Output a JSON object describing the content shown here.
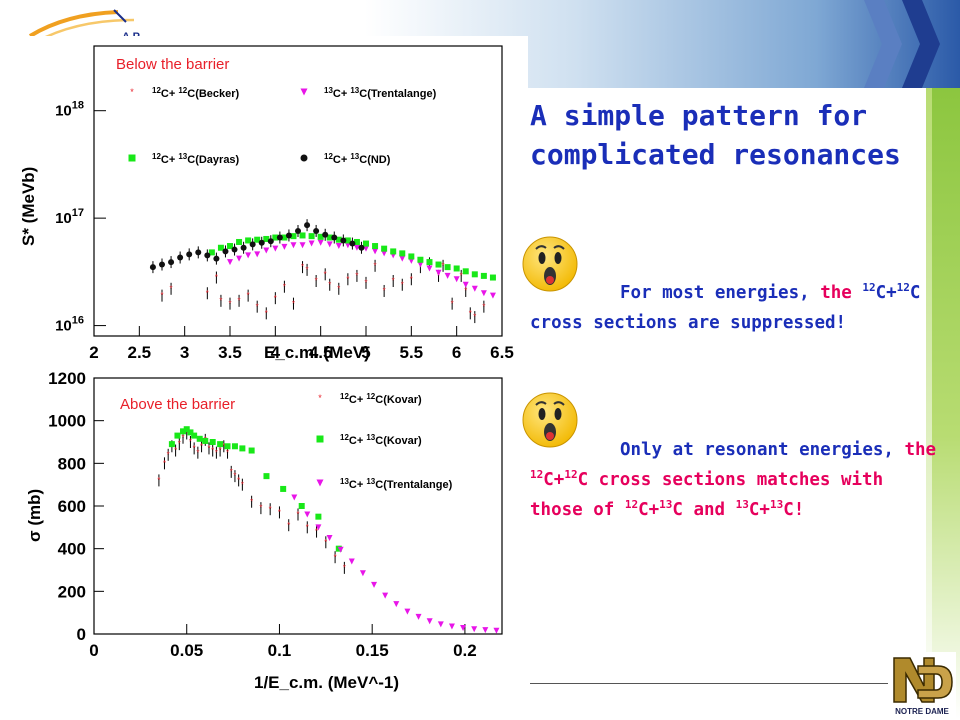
{
  "slide": {
    "title_line1": "A simple pattern for",
    "title_line2": "complicated resonances",
    "bullet1": {
      "icon": "surprised-face-icon",
      "lead": "For most energies, ",
      "the": "the",
      "part1_sup": "12",
      "part2": "C+",
      "part3_sup": "12",
      "part4": "C cross sections are suppressed!"
    },
    "bullet2": {
      "icon": "surprised-face-icon",
      "lead": "Only at resonant energies, ",
      "the": "the",
      "s1": "12",
      "t1": "C+",
      "s2": "12",
      "t2": "C cross sections matches with those of ",
      "s3": "12",
      "t3": "C+",
      "s4": "13",
      "t4": "C and ",
      "s5": "13",
      "t5": "C+",
      "s6": "13",
      "t6": "C!"
    },
    "logo_text": "A P",
    "nd_logo_caption": "NOTRE DAME",
    "colors": {
      "title": "#1a2eb8",
      "highlight": "#e6005c",
      "accent_green": "#8cc63f",
      "accent_blue": "#2b5aa8"
    }
  },
  "chart_data": [
    {
      "type": "scatter",
      "annotation": "Below the barrier",
      "xlabel": "E_c.m. (MeV)",
      "ylabel": "S* (MeVb)",
      "xlim": [
        2,
        6.5
      ],
      "ylim": [
        8000000000000000.0,
        4e+18
      ],
      "yscale": "log",
      "xticks": [
        "2",
        "2.5",
        "3",
        "3.5",
        "4",
        "4.5",
        "5",
        "5.5",
        "6",
        "6.5"
      ],
      "yticks": [
        "10^16",
        "10^17",
        "10^18"
      ],
      "series": [
        {
          "name": "12C+12C(Becker)",
          "marker": "star",
          "color": "#e8202a",
          "x": [
            2.75,
            2.85,
            3.25,
            3.35,
            3.4,
            3.5,
            3.6,
            3.7,
            3.8,
            3.9,
            4.0,
            4.1,
            4.2,
            4.3,
            4.35,
            4.45,
            4.55,
            4.6,
            4.7,
            4.8,
            4.9,
            5.0,
            5.1,
            5.2,
            5.3,
            5.4,
            5.5,
            5.6,
            5.7,
            5.8,
            5.85,
            5.95,
            6.05,
            6.1,
            6.15,
            6.2,
            6.3
          ],
          "y": [
            1.9e+16,
            2.2e+16,
            2e+16,
            2.8e+16,
            1.7e+16,
            1.6e+16,
            1.7e+16,
            1.9e+16,
            1.5e+16,
            1.3e+16,
            1.8e+16,
            2.3e+16,
            1.6e+16,
            3.5e+16,
            3.3e+16,
            2.6e+16,
            3e+16,
            2.4e+16,
            2.2e+16,
            2.7e+16,
            2.9e+16,
            2.5e+16,
            3.6e+16,
            2.1e+16,
            2.6e+16,
            2.4e+16,
            2.7e+16,
            3.5e+16,
            3.8e+16,
            2.9e+16,
            3.6e+16,
            1.6e+16,
            2.9e+16,
            2.1e+16,
            1.3e+16,
            1.2e+16,
            1.5e+16
          ]
        },
        {
          "name": "13C+13C(Trentalange)",
          "marker": "triangle-down",
          "color": "#e815e8",
          "x": [
            3.5,
            3.6,
            3.7,
            3.8,
            3.9,
            4.0,
            4.1,
            4.2,
            4.3,
            4.4,
            4.5,
            4.6,
            4.7,
            4.8,
            4.9,
            5.0,
            5.1,
            5.2,
            5.3,
            5.4,
            5.5,
            5.6,
            5.7,
            5.8,
            5.9,
            6.0,
            6.1,
            6.2,
            6.3,
            6.4
          ],
          "y": [
            3.9e+16,
            4.2e+16,
            4.5e+16,
            4.6e+16,
            5e+16,
            5.2e+16,
            5.4e+16,
            5.6e+16,
            5.6e+16,
            5.8e+16,
            5.9e+16,
            5.7e+16,
            5.5e+16,
            5.6e+16,
            5.3e+16,
            5.2e+16,
            4.9e+16,
            4.7e+16,
            4.5e+16,
            4.2e+16,
            4e+16,
            3.7e+16,
            3.4e+16,
            3.1e+16,
            2.9e+16,
            2.7e+16,
            2.4e+16,
            2.2e+16,
            2e+16,
            1.9e+16
          ]
        },
        {
          "name": "12C+13C(Dayras)",
          "marker": "square",
          "color": "#18e818",
          "x": [
            3.3,
            3.4,
            3.5,
            3.6,
            3.7,
            3.8,
            3.9,
            4.0,
            4.1,
            4.2,
            4.3,
            4.4,
            4.5,
            4.6,
            4.7,
            4.8,
            4.9,
            5.0,
            5.1,
            5.2,
            5.3,
            5.4,
            5.5,
            5.6,
            5.7,
            5.8,
            5.9,
            6.0,
            6.1,
            6.2,
            6.3,
            6.4
          ],
          "y": [
            4.8e+16,
            5.3e+16,
            5.5e+16,
            6e+16,
            6.2e+16,
            6.3e+16,
            6.4e+16,
            6.6e+16,
            6.6e+16,
            6.8e+16,
            6.9e+16,
            6.8e+16,
            6.7e+16,
            6.6e+16,
            6.3e+16,
            6.2e+16,
            6e+16,
            5.8e+16,
            5.5e+16,
            5.2e+16,
            4.9e+16,
            4.7e+16,
            4.4e+16,
            4.1e+16,
            3.9e+16,
            3.7e+16,
            3.5e+16,
            3.4e+16,
            3.2e+16,
            3e+16,
            2.9e+16,
            2.8e+16
          ]
        },
        {
          "name": "12C+13C(ND)",
          "marker": "circle",
          "color": "#111111",
          "x": [
            2.65,
            2.75,
            2.85,
            2.95,
            3.05,
            3.15,
            3.25,
            3.35,
            3.45,
            3.55,
            3.65,
            3.75,
            3.85,
            3.95,
            4.05,
            4.15,
            4.25,
            4.35,
            4.45,
            4.55,
            4.65,
            4.75,
            4.85,
            4.95
          ],
          "y": [
            3.5e+16,
            3.7e+16,
            3.9e+16,
            4.3e+16,
            4.6e+16,
            4.8e+16,
            4.5e+16,
            4.2e+16,
            4.9e+16,
            5.1e+16,
            5.3e+16,
            5.7e+16,
            5.9e+16,
            6.1e+16,
            6.6e+16,
            6.9e+16,
            7.6e+16,
            8.6e+16,
            7.6e+16,
            7e+16,
            6.6e+16,
            6.2e+16,
            5.8e+16,
            5.3e+16
          ]
        }
      ]
    },
    {
      "type": "scatter",
      "annotation": "Above the barrier",
      "xlabel": "1/E_c.m. (MeV^-1)",
      "ylabel": "σ (mb)",
      "xlim": [
        0,
        0.22
      ],
      "ylim": [
        0,
        1200
      ],
      "xticks": [
        "0",
        "0.05",
        "0.1",
        "0.15",
        "0.2"
      ],
      "yticks": [
        "0",
        "200",
        "400",
        "600",
        "800",
        "1000",
        "1200"
      ],
      "series": [
        {
          "name": "12C+12C(Kovar)",
          "marker": "star",
          "color": "#e8202a",
          "x": [
            0.035,
            0.038,
            0.04,
            0.042,
            0.044,
            0.046,
            0.048,
            0.05,
            0.052,
            0.054,
            0.056,
            0.058,
            0.06,
            0.062,
            0.064,
            0.066,
            0.068,
            0.07,
            0.072,
            0.074,
            0.076,
            0.078,
            0.08,
            0.085,
            0.09,
            0.095,
            0.1,
            0.105,
            0.11,
            0.115,
            0.12,
            0.125,
            0.13,
            0.135
          ],
          "y": [
            720,
            800,
            840,
            880,
            860,
            890,
            920,
            940,
            900,
            870,
            850,
            880,
            910,
            870,
            860,
            850,
            860,
            880,
            850,
            760,
            740,
            720,
            700,
            620,
            590,
            585,
            570,
            510,
            560,
            500,
            480,
            430,
            360,
            310
          ]
        },
        {
          "name": "12C+13C(Kovar)",
          "marker": "square",
          "color": "#18e818",
          "x": [
            0.042,
            0.045,
            0.048,
            0.05,
            0.052,
            0.054,
            0.057,
            0.06,
            0.064,
            0.068,
            0.072,
            0.076,
            0.08,
            0.085,
            0.093,
            0.102,
            0.112,
            0.121,
            0.132
          ],
          "y": [
            890,
            930,
            950,
            960,
            945,
            930,
            915,
            905,
            900,
            890,
            880,
            880,
            870,
            860,
            740,
            680,
            600,
            550,
            400
          ]
        },
        {
          "name": "13C+13C(Trentalange)",
          "marker": "triangle-down",
          "color": "#e815e8",
          "x": [
            0.108,
            0.115,
            0.121,
            0.127,
            0.133,
            0.139,
            0.145,
            0.151,
            0.157,
            0.163,
            0.169,
            0.175,
            0.181,
            0.187,
            0.193,
            0.199,
            0.205,
            0.211,
            0.217
          ],
          "y": [
            640,
            560,
            500,
            450,
            395,
            340,
            285,
            230,
            180,
            140,
            105,
            80,
            60,
            45,
            35,
            28,
            22,
            18,
            15
          ]
        }
      ]
    }
  ]
}
